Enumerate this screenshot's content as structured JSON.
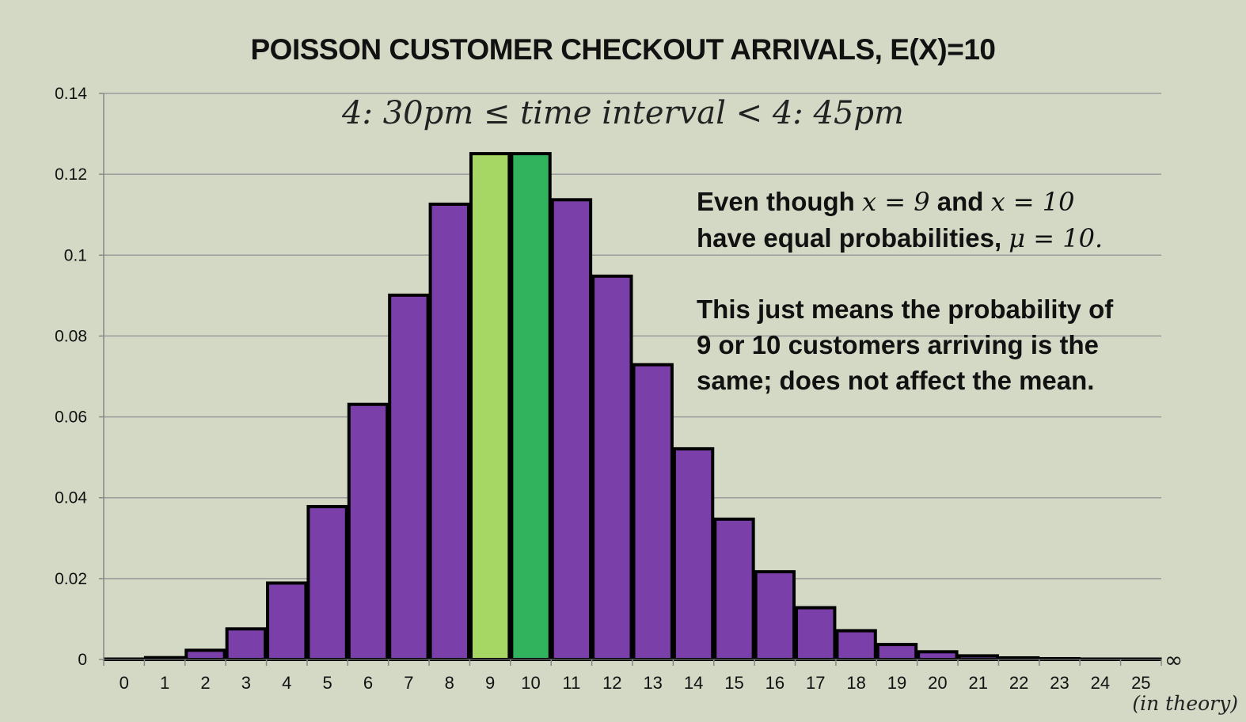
{
  "chart_data": {
    "type": "bar",
    "title": "POISSON CUSTOMER CHECKOUT ARRIVALS, E(X)=10",
    "subtitle": "4: 30pm ≤ time interval < 4: 45pm",
    "categories": [
      "0",
      "1",
      "2",
      "3",
      "4",
      "5",
      "6",
      "7",
      "8",
      "9",
      "10",
      "11",
      "12",
      "13",
      "14",
      "15",
      "16",
      "17",
      "18",
      "19",
      "20",
      "21",
      "22",
      "23",
      "24",
      "25"
    ],
    "values": [
      4.54e-05,
      0.000454,
      0.00227,
      0.00757,
      0.0189,
      0.0378,
      0.0631,
      0.0901,
      0.1126,
      0.1251,
      0.1251,
      0.1137,
      0.0948,
      0.0729,
      0.0521,
      0.0347,
      0.0217,
      0.0128,
      0.0071,
      0.0037,
      0.0019,
      0.0009,
      0.0004,
      0.0002,
      0.0001,
      4e-05
    ],
    "highlights": {
      "9": "#a6d664",
      "10": "#31b35e"
    },
    "bar_color": "#7a3fa8",
    "ylim": [
      0,
      0.14
    ],
    "yticks": [
      "0",
      "0.02",
      "0.04",
      "0.06",
      "0.08",
      "0.1",
      "0.12",
      "0.14"
    ],
    "infinity_label": "∞",
    "grid": true,
    "xlabel": "",
    "ylabel": ""
  },
  "annotation1": {
    "line1_a": "Even though ",
    "line1_m1": "x = 9",
    "line1_b": " and ",
    "line1_m2": "x = 10",
    "line2_a": "have equal probabilities, ",
    "line2_m": "μ = 10",
    "line2_b": "."
  },
  "annotation2": {
    "line1": "This just means the probability of",
    "line2": "9 or 10 customers arriving is the",
    "line3": "same; does not affect the mean."
  },
  "footnote": "(in theory)",
  "colors": {
    "background": "#d4d9c6",
    "grid": "#9a9a9a"
  }
}
